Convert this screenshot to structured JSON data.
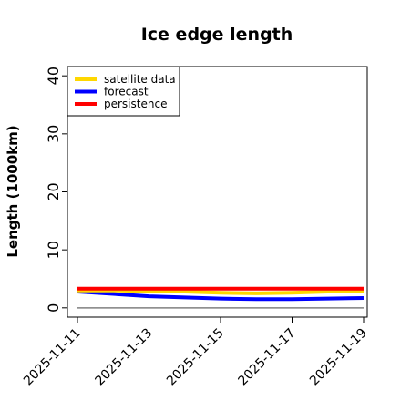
{
  "chart_data": {
    "type": "line",
    "title": "Ice edge length",
    "xlabel": "",
    "ylabel": "Length (1000km)",
    "ylim": [
      -1.6,
      41.6
    ],
    "yticks": [
      0,
      10,
      20,
      30,
      40
    ],
    "x": [
      "2025-11-11",
      "2025-11-12",
      "2025-11-13",
      "2025-11-14",
      "2025-11-15",
      "2025-11-16",
      "2025-11-17",
      "2025-11-18",
      "2025-11-19"
    ],
    "xtick_labels": [
      "2025-11-11",
      "2025-11-13",
      "2025-11-15",
      "2025-11-17",
      "2025-11-19"
    ],
    "highlight_tick": "2025-11-11",
    "highlight_color": "#228B22",
    "series": [
      {
        "name": "satellite data",
        "color": "#FFD700",
        "values": [
          3.0,
          3.0,
          2.9,
          2.8,
          2.6,
          2.5,
          2.6,
          2.8,
          2.9
        ]
      },
      {
        "name": "forecast",
        "color": "#0000FF",
        "values": [
          2.8,
          2.4,
          2.0,
          1.8,
          1.6,
          1.5,
          1.5,
          1.6,
          1.7
        ]
      },
      {
        "name": "persistence",
        "color": "#FF0000",
        "values": [
          3.3,
          3.3,
          3.3,
          3.3,
          3.3,
          3.3,
          3.3,
          3.3,
          3.3
        ]
      }
    ],
    "reference_line": {
      "value": 0,
      "color": "#808080"
    },
    "legend_position": "top-left",
    "grid": false
  }
}
